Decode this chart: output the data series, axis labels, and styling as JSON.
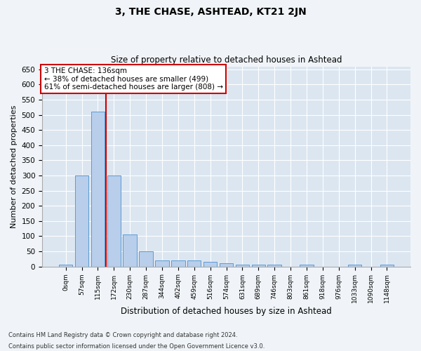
{
  "title": "3, THE CHASE, ASHTEAD, KT21 2JN",
  "subtitle": "Size of property relative to detached houses in Ashtead",
  "xlabel": "Distribution of detached houses by size in Ashtead",
  "ylabel": "Number of detached properties",
  "footnote1": "Contains HM Land Registry data © Crown copyright and database right 2024.",
  "footnote2": "Contains public sector information licensed under the Open Government Licence v3.0.",
  "bin_labels": [
    "0sqm",
    "57sqm",
    "115sqm",
    "172sqm",
    "230sqm",
    "287sqm",
    "344sqm",
    "402sqm",
    "459sqm",
    "516sqm",
    "574sqm",
    "631sqm",
    "689sqm",
    "746sqm",
    "803sqm",
    "861sqm",
    "918sqm",
    "976sqm",
    "1033sqm",
    "1090sqm",
    "1148sqm"
  ],
  "bar_values": [
    5,
    300,
    510,
    300,
    105,
    50,
    20,
    20,
    20,
    15,
    10,
    5,
    5,
    5,
    0,
    5,
    0,
    0,
    5,
    0,
    5
  ],
  "bar_color": "#b8ceea",
  "bar_edge_color": "#5b9bd5",
  "background_color": "#dce6f1",
  "fig_background": "#f0f4f8",
  "red_line_x": 2.5,
  "red_line_color": "#cc0000",
  "annotation_text": "3 THE CHASE: 136sqm\n← 38% of detached houses are smaller (499)\n61% of semi-detached houses are larger (808) →",
  "annotation_box_color": "#ffffff",
  "annotation_box_edge": "#cc0000",
  "ylim": [
    0,
    660
  ],
  "yticks": [
    0,
    50,
    100,
    150,
    200,
    250,
    300,
    350,
    400,
    450,
    500,
    550,
    600,
    650
  ]
}
